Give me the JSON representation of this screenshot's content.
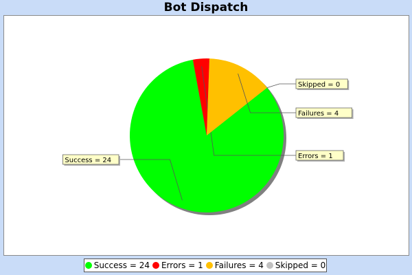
{
  "chart_data": {
    "type": "pie",
    "title": "Bot Dispatch",
    "slices": [
      {
        "name": "Success",
        "value": 24,
        "label": "Success = 24",
        "color": "#00ff00"
      },
      {
        "name": "Errors",
        "value": 1,
        "label": "Errors = 1",
        "color": "#ff0000"
      },
      {
        "name": "Failures",
        "value": 4,
        "label": "Failures = 4",
        "color": "#ffc000"
      },
      {
        "name": "Skipped",
        "value": 0,
        "label": "Skipped = 0",
        "color": "#c0c0c0"
      }
    ],
    "legend_position": "bottom"
  }
}
